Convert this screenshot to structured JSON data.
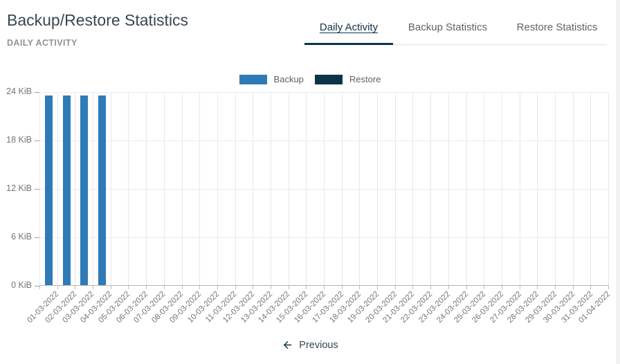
{
  "page": {
    "title": "Backup/Restore Statistics",
    "subtitle": "DAILY ACTIVITY"
  },
  "tabs": [
    {
      "label": "Daily Activity",
      "active": true
    },
    {
      "label": "Backup Statistics",
      "active": false
    },
    {
      "label": "Restore Statistics",
      "active": false
    }
  ],
  "legend": [
    {
      "label": "Backup",
      "color": "#2e7bb8"
    },
    {
      "label": "Restore",
      "color": "#0d3349"
    }
  ],
  "chart_data": {
    "type": "bar",
    "title": "Daily Activity",
    "unit": "KiB",
    "ylim": [
      0,
      24
    ],
    "ytick_step": 6,
    "y_ticks": [
      "24 KiB",
      "18 KiB",
      "12 KiB",
      "6 KiB",
      "0 KiB"
    ],
    "grid": true,
    "legend_position": "top",
    "categories": [
      "01-03-2022",
      "02-03-2022",
      "03-03-2022",
      "04-03-2022",
      "05-03-2022",
      "06-03-2022",
      "07-03-2022",
      "08-03-2022",
      "09-03-2022",
      "10-03-2022",
      "11-03-2022",
      "12-03-2022",
      "13-03-2022",
      "14-03-2022",
      "15-03-2022",
      "16-03-2022",
      "17-03-2022",
      "18-03-2022",
      "19-03-2022",
      "20-03-2022",
      "21-03-2022",
      "22-03-2022",
      "23-03-2022",
      "24-03-2022",
      "25-03-2022",
      "26-03-2022",
      "27-03-2022",
      "28-03-2022",
      "29-03-2022",
      "30-03-2022",
      "31-03-2022",
      "01-04-2022"
    ],
    "series": [
      {
        "name": "Backup",
        "color": "#2e7bb8",
        "values": [
          23.6,
          23.6,
          23.6,
          23.6,
          0,
          0,
          0,
          0,
          0,
          0,
          0,
          0,
          0,
          0,
          0,
          0,
          0,
          0,
          0,
          0,
          0,
          0,
          0,
          0,
          0,
          0,
          0,
          0,
          0,
          0,
          0,
          0
        ]
      },
      {
        "name": "Restore",
        "color": "#0d3349",
        "values": [
          0,
          0,
          0,
          0,
          0,
          0,
          0,
          0,
          0,
          0,
          0,
          0,
          0,
          0,
          0,
          0,
          0,
          0,
          0,
          0,
          0,
          0,
          0,
          0,
          0,
          0,
          0,
          0,
          0,
          0,
          0,
          0
        ]
      }
    ]
  },
  "footer": {
    "previous_label": "Previous"
  },
  "colors": {
    "accent": "#0d3349",
    "backup": "#2e7bb8",
    "restore": "#0d3349"
  }
}
